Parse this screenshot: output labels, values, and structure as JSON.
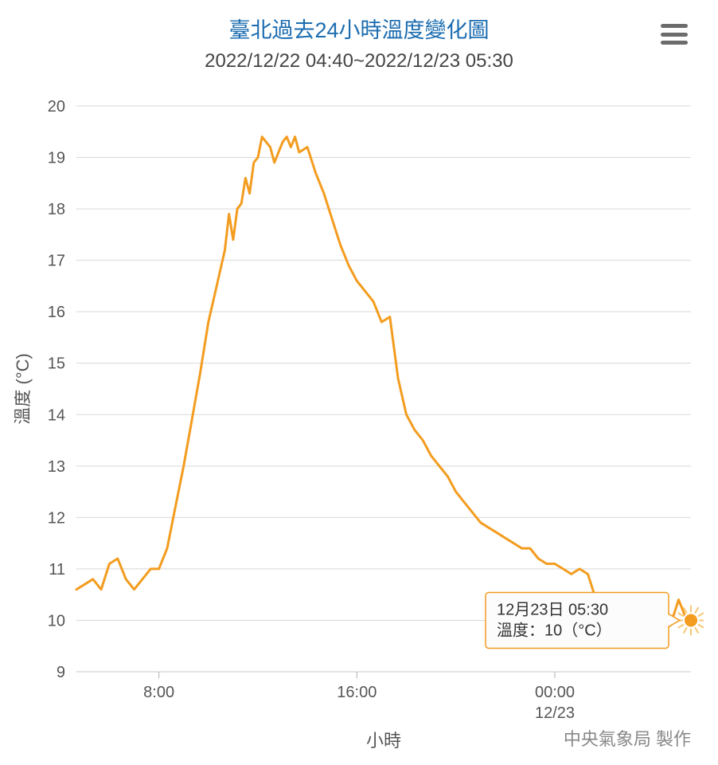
{
  "header": {
    "title": "臺北過去24小時溫度變化圖",
    "subtitle": "2022/12/22 04:40~2022/12/23 05:30"
  },
  "chart": {
    "type": "line",
    "y_axis_title": "溫度 (°C)",
    "x_axis_title": "小時",
    "credit": "中央氣象局 製作",
    "series_color": "#f39c1f",
    "grid_color": "#d8d8d8",
    "background_color": "#ffffff",
    "font_color": "#555555",
    "title_color": "#1b6cb0",
    "line_width": 3,
    "ylim": [
      9,
      20
    ],
    "yticks": [
      9,
      10,
      11,
      12,
      13,
      14,
      15,
      16,
      17,
      18,
      19,
      20
    ],
    "x_domain_minutes": [
      280,
      1770
    ],
    "xticks": [
      {
        "minute": 480,
        "label": "8:00",
        "sublabel": ""
      },
      {
        "minute": 960,
        "label": "16:00",
        "sublabel": ""
      },
      {
        "minute": 1440,
        "label": "00:00",
        "sublabel": "12/23"
      }
    ],
    "data": [
      [
        280,
        10.6
      ],
      [
        300,
        10.7
      ],
      [
        320,
        10.8
      ],
      [
        340,
        10.6
      ],
      [
        360,
        11.1
      ],
      [
        380,
        11.2
      ],
      [
        400,
        10.8
      ],
      [
        420,
        10.6
      ],
      [
        440,
        10.8
      ],
      [
        460,
        11.0
      ],
      [
        480,
        11.0
      ],
      [
        500,
        11.4
      ],
      [
        520,
        12.2
      ],
      [
        540,
        13.0
      ],
      [
        560,
        13.9
      ],
      [
        580,
        14.8
      ],
      [
        600,
        15.8
      ],
      [
        620,
        16.5
      ],
      [
        640,
        17.2
      ],
      [
        650,
        17.9
      ],
      [
        660,
        17.4
      ],
      [
        670,
        18.0
      ],
      [
        680,
        18.1
      ],
      [
        690,
        18.6
      ],
      [
        700,
        18.3
      ],
      [
        710,
        18.9
      ],
      [
        720,
        19.0
      ],
      [
        730,
        19.4
      ],
      [
        740,
        19.3
      ],
      [
        750,
        19.2
      ],
      [
        760,
        18.9
      ],
      [
        770,
        19.1
      ],
      [
        780,
        19.3
      ],
      [
        790,
        19.4
      ],
      [
        800,
        19.2
      ],
      [
        810,
        19.4
      ],
      [
        820,
        19.1
      ],
      [
        840,
        19.2
      ],
      [
        860,
        18.7
      ],
      [
        880,
        18.3
      ],
      [
        900,
        17.8
      ],
      [
        920,
        17.3
      ],
      [
        940,
        16.9
      ],
      [
        960,
        16.6
      ],
      [
        980,
        16.4
      ],
      [
        1000,
        16.2
      ],
      [
        1020,
        15.8
      ],
      [
        1040,
        15.9
      ],
      [
        1060,
        14.7
      ],
      [
        1080,
        14.0
      ],
      [
        1100,
        13.7
      ],
      [
        1120,
        13.5
      ],
      [
        1140,
        13.2
      ],
      [
        1160,
        13.0
      ],
      [
        1180,
        12.8
      ],
      [
        1200,
        12.5
      ],
      [
        1220,
        12.3
      ],
      [
        1240,
        12.1
      ],
      [
        1260,
        11.9
      ],
      [
        1280,
        11.8
      ],
      [
        1300,
        11.7
      ],
      [
        1320,
        11.6
      ],
      [
        1340,
        11.5
      ],
      [
        1360,
        11.4
      ],
      [
        1380,
        11.4
      ],
      [
        1400,
        11.2
      ],
      [
        1420,
        11.1
      ],
      [
        1440,
        11.1
      ],
      [
        1460,
        11.0
      ],
      [
        1480,
        10.9
      ],
      [
        1500,
        11.0
      ],
      [
        1520,
        10.9
      ],
      [
        1540,
        10.4
      ],
      [
        1560,
        10.3
      ],
      [
        1580,
        10.3
      ],
      [
        1600,
        10.1
      ],
      [
        1620,
        10.2
      ],
      [
        1640,
        10.3
      ],
      [
        1660,
        10.1
      ],
      [
        1680,
        10.0
      ],
      [
        1700,
        10.0
      ],
      [
        1720,
        9.9
      ],
      [
        1740,
        10.4
      ],
      [
        1760,
        10.0
      ],
      [
        1770,
        10.0
      ]
    ],
    "last_point": {
      "minute": 1770,
      "value": 10.0
    },
    "tooltip": {
      "line1": "12月23日 05:30",
      "line2": "溫度：10（°C）",
      "border_color": "#f39c1f",
      "fill_color": "#fcfcfc"
    }
  }
}
